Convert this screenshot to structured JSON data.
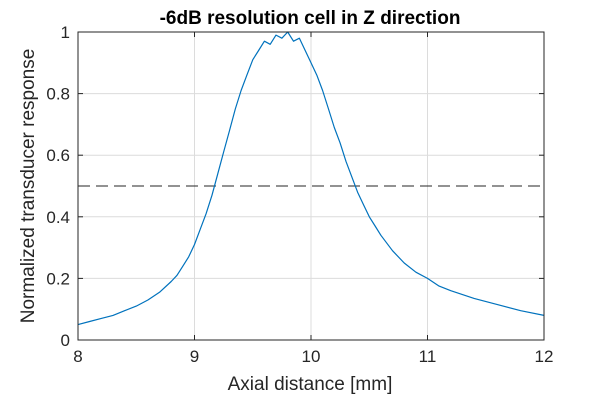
{
  "chart_data": {
    "type": "line",
    "title": "-6dB resolution cell in Z direction",
    "xlabel": "Axial distance [mm]",
    "ylabel": "Normalized transducer response",
    "xlim": [
      8,
      12
    ],
    "ylim": [
      0,
      1
    ],
    "xticks": [
      "8",
      "9",
      "10",
      "11",
      "12"
    ],
    "yticks": [
      "0",
      "0.2",
      "0.4",
      "0.6",
      "0.8",
      "1"
    ],
    "grid": true,
    "series": [
      {
        "color": "#0072BD",
        "x": [
          8.0,
          8.1,
          8.2,
          8.3,
          8.4,
          8.5,
          8.6,
          8.7,
          8.8,
          8.85,
          8.9,
          8.95,
          9.0,
          9.05,
          9.1,
          9.15,
          9.2,
          9.25,
          9.3,
          9.35,
          9.4,
          9.45,
          9.5,
          9.55,
          9.6,
          9.65,
          9.7,
          9.75,
          9.8,
          9.85,
          9.9,
          9.95,
          10.0,
          10.05,
          10.1,
          10.15,
          10.2,
          10.25,
          10.3,
          10.35,
          10.4,
          10.45,
          10.5,
          10.55,
          10.6,
          10.7,
          10.8,
          10.9,
          11.0,
          11.1,
          11.2,
          11.4,
          11.6,
          11.8,
          12.0
        ],
        "y": [
          0.05,
          0.06,
          0.07,
          0.08,
          0.095,
          0.11,
          0.13,
          0.155,
          0.19,
          0.21,
          0.24,
          0.27,
          0.31,
          0.36,
          0.41,
          0.47,
          0.54,
          0.61,
          0.68,
          0.75,
          0.81,
          0.86,
          0.91,
          0.94,
          0.97,
          0.96,
          0.99,
          0.98,
          1.0,
          0.97,
          0.98,
          0.94,
          0.9,
          0.86,
          0.81,
          0.75,
          0.69,
          0.64,
          0.58,
          0.53,
          0.48,
          0.44,
          0.4,
          0.37,
          0.34,
          0.29,
          0.25,
          0.22,
          0.2,
          0.175,
          0.16,
          0.135,
          0.115,
          0.095,
          0.08
        ]
      }
    ],
    "reference_line": {
      "y": 0.5,
      "style": "dashed",
      "color": "#262626"
    }
  }
}
